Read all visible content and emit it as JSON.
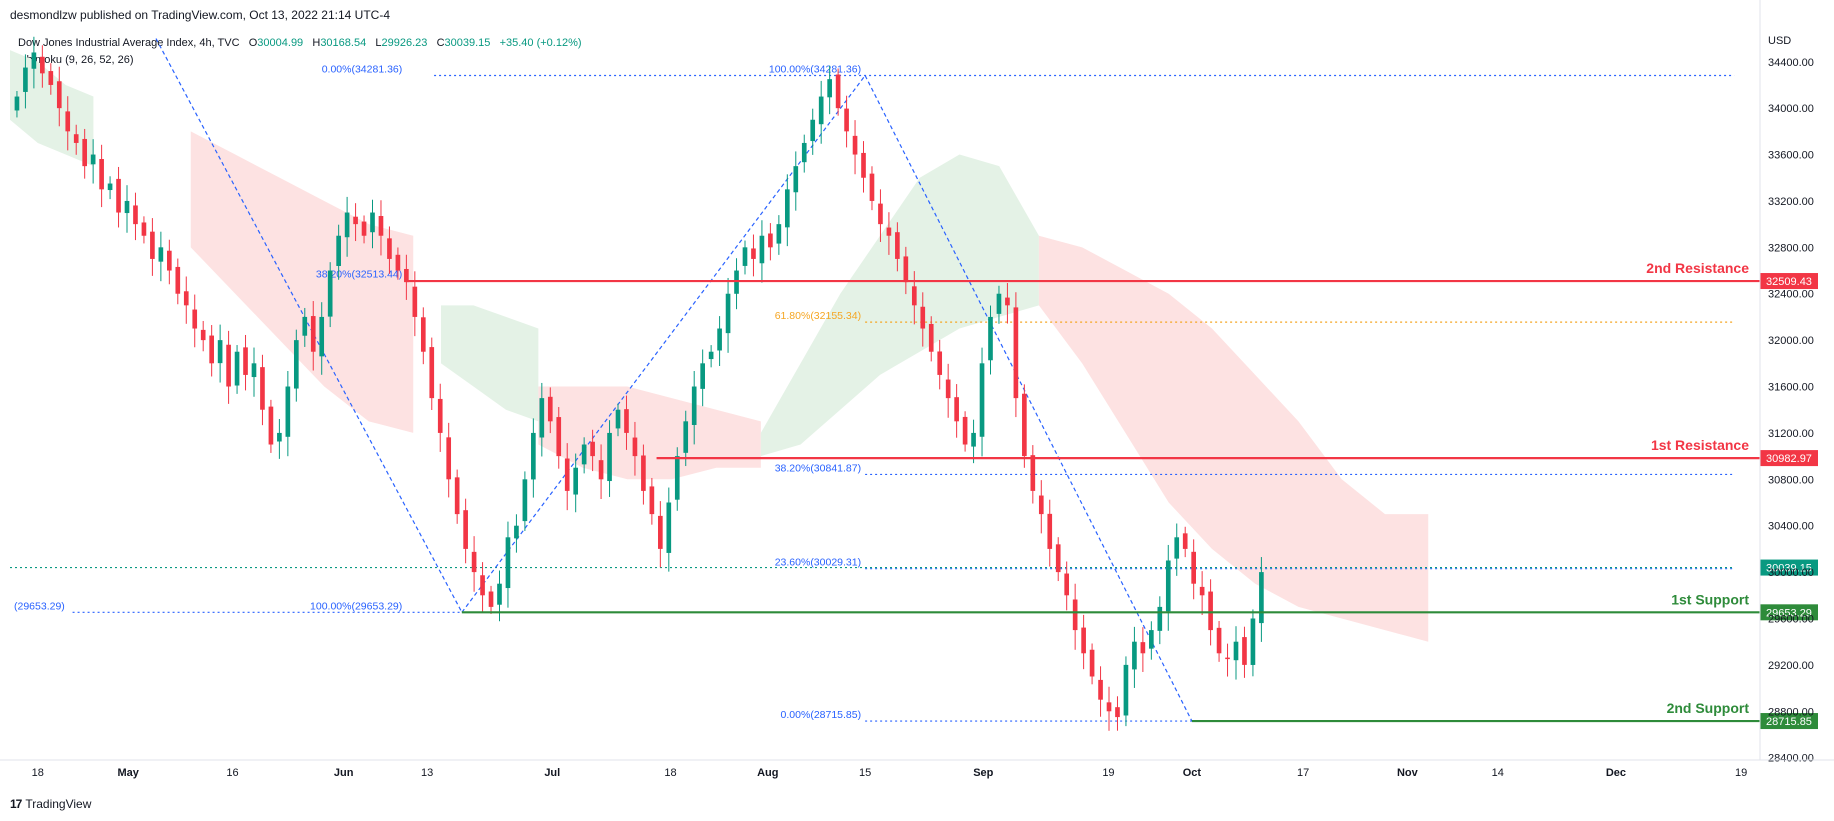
{
  "header": {
    "publisher": "desmondlzw published on TradingView.com, Oct 13, 2022 21:14 UTC-4"
  },
  "legend": {
    "symbol": "Dow Jones Industrial Average Index, 4h, TVC",
    "open_label": "O",
    "open": "30004.99",
    "high_label": "H",
    "high": "30168.54",
    "low_label": "L",
    "low": "29926.23",
    "close_label": "C",
    "close": "30039.15",
    "change": "+35.40 (+0.12%)",
    "indicator": "Ichimoku (9, 26, 52, 26)"
  },
  "footer": {
    "logo_text": "TradingView",
    "logo_mark": "17"
  },
  "colors": {
    "up": "#089981",
    "down": "#f23645",
    "resistance": "#f23645",
    "support": "#2e8b3a",
    "fib_blue": "#2962ff",
    "fib_orange": "#f5a623",
    "cloud_bull": "#e4f2e6",
    "cloud_bear": "#fde2e2"
  },
  "chart_data": {
    "type": "candlestick",
    "title": "Dow Jones Industrial Average Index, 4h, TVC",
    "currency": "USD",
    "y_ticks": [
      "34400.00",
      "34000.00",
      "33600.00",
      "33200.00",
      "32800.00",
      "32400.00",
      "32000.00",
      "31600.00",
      "31200.00",
      "30800.00",
      "30400.00",
      "30000.00",
      "29600.00",
      "29200.00",
      "28800.00",
      "28400.00"
    ],
    "y_tick_values": [
      34400,
      34000,
      33600,
      33200,
      32800,
      32400,
      32000,
      31600,
      31200,
      30800,
      30400,
      30000,
      29600,
      29200,
      28800,
      28400
    ],
    "ylim": [
      28380,
      34760
    ],
    "x_ticks": [
      {
        "label": "18",
        "day": 0
      },
      {
        "label": "May",
        "day": 13
      },
      {
        "label": "16",
        "day": 28
      },
      {
        "label": "Jun",
        "day": 44
      },
      {
        "label": "13",
        "day": 56
      },
      {
        "label": "Jul",
        "day": 74
      },
      {
        "label": "18",
        "day": 91
      },
      {
        "label": "Aug",
        "day": 105
      },
      {
        "label": "15",
        "day": 119
      },
      {
        "label": "Sep",
        "day": 136
      },
      {
        "label": "19",
        "day": 154
      },
      {
        "label": "Oct",
        "day": 166
      },
      {
        "label": "17",
        "day": 182
      },
      {
        "label": "Nov",
        "day": 197
      },
      {
        "label": "14",
        "day": 210
      },
      {
        "label": "Dec",
        "day": 227
      },
      {
        "label": "19",
        "day": 245
      }
    ],
    "xlim_days": [
      -4,
      247
    ],
    "grid": false,
    "horizontal_levels": [
      {
        "name": "2nd Resistance",
        "value": 32509.43,
        "label": "32509.43",
        "color": "#f23645",
        "start_day": 53
      },
      {
        "name": "1st Resistance",
        "value": 30982.97,
        "label": "30982.97",
        "color": "#f23645",
        "start_day": 89
      },
      {
        "name": "1st Support",
        "value": 29653.29,
        "label": "29653.29",
        "color": "#2e8b3a",
        "start_day": 61
      },
      {
        "name": "2nd Support",
        "value": 28715.85,
        "label": "28715.85",
        "color": "#2e8b3a",
        "start_day": 166
      }
    ],
    "last_price": {
      "value": 30039.15,
      "label": "30039.15"
    },
    "fib_labels": [
      {
        "text": "0.00%(34281.36)",
        "value": 34281.36,
        "day": 53,
        "color": "#2962ff"
      },
      {
        "text": "100.00%(34281.36)",
        "value": 34281.36,
        "day": 119,
        "color": "#2962ff"
      },
      {
        "text": "38.20%(32513.44)",
        "value": 32513.44,
        "day": 53,
        "color": "#2962ff"
      },
      {
        "text": "61.80%(32155.34)",
        "value": 32155.34,
        "day": 119,
        "color": "#f5a623"
      },
      {
        "text": "38.20%(30841.87)",
        "value": 30841.87,
        "day": 119,
        "color": "#2962ff"
      },
      {
        "text": "23.60%(30029.31)",
        "value": 30029.31,
        "day": 119,
        "color": "#2962ff"
      },
      {
        "text": "100.00%(29653.29)",
        "value": 29653.29,
        "day": 53,
        "color": "#2962ff"
      },
      {
        "text": "(29653.29)",
        "value": 29653.29,
        "day": -4,
        "color": "#2962ff"
      },
      {
        "text": "0.00%(28715.85)",
        "value": 28715.85,
        "day": 119,
        "color": "#2962ff"
      }
    ],
    "fib_lines": [
      {
        "value": 34281.36,
        "from_day": 57,
        "to_day": 244,
        "color": "#2962ff"
      },
      {
        "value": 32155.34,
        "from_day": 119,
        "to_day": 244,
        "color": "#f5a623"
      },
      {
        "value": 30841.87,
        "from_day": 119,
        "to_day": 244,
        "color": "#2962ff"
      },
      {
        "value": 30029.31,
        "from_day": 119,
        "to_day": 244,
        "color": "#2962ff"
      },
      {
        "value": 29653.29,
        "from_day": 5,
        "to_day": 61,
        "color": "#2962ff"
      },
      {
        "value": 28715.85,
        "from_day": 119,
        "to_day": 244,
        "color": "#2962ff"
      },
      {
        "value": 30039.15,
        "from_day": -4,
        "to_day": 244,
        "color": "#089981"
      }
    ],
    "trend_lines": [
      {
        "from": [
          17,
          34600
        ],
        "to": [
          61,
          29653.29
        ]
      },
      {
        "from": [
          61,
          29653.29
        ],
        "to": [
          119,
          34281.36
        ]
      },
      {
        "from": [
          119,
          34281.36
        ],
        "to": [
          166,
          28715.85
        ]
      }
    ],
    "closes": [
      34100,
      34350,
      34480,
      34300,
      34200,
      34000,
      33800,
      33700,
      33500,
      33600,
      33300,
      33350,
      33100,
      33200,
      33000,
      32900,
      32700,
      32800,
      32600,
      32400,
      32300,
      32100,
      32000,
      31800,
      32000,
      31600,
      31900,
      31700,
      31800,
      31400,
      31100,
      31200,
      31600,
      32000,
      32200,
      31900,
      32200,
      32600,
      32900,
      33100,
      33000,
      32900,
      33100,
      32900,
      32700,
      32600,
      32500,
      32200,
      31900,
      31500,
      31200,
      30800,
      30500,
      30200,
      30000,
      29800,
      29700,
      29900,
      30300,
      30400,
      30800,
      31200,
      31500,
      31300,
      31000,
      30700,
      30900,
      31100,
      31000,
      30800,
      31200,
      31400,
      31200,
      31000,
      30700,
      30500,
      30200,
      30600,
      31000,
      31300,
      31600,
      31800,
      31900,
      32100,
      32400,
      32600,
      32800,
      32700,
      32900,
      32800,
      33000,
      33300,
      33500,
      33700,
      33900,
      34100,
      34250,
      34000,
      33800,
      33600,
      33400,
      33200,
      33000,
      32900,
      32700,
      32500,
      32300,
      32100,
      31900,
      31700,
      31500,
      31300,
      31100,
      31200,
      31800,
      32200,
      32400,
      32300,
      31500,
      31000,
      30700,
      30500,
      30200,
      30000,
      29800,
      29500,
      29300,
      29100,
      28900,
      28800,
      28750,
      29200,
      29400,
      29300,
      29500,
      29700,
      30100,
      30300,
      30200,
      29900,
      29800,
      29500,
      29300,
      29250,
      29400,
      29200,
      29600,
      30000
    ],
    "cloud": [
      {
        "from_day": -4,
        "to_day": 8,
        "type": "bull",
        "top": [
          34500,
          34400,
          34200,
          34100
        ],
        "bottom": [
          33900,
          33700,
          33600,
          33500
        ]
      },
      {
        "from_day": 22,
        "to_day": 54,
        "type": "bear",
        "top": [
          33800,
          33600,
          33400,
          33200,
          33000,
          32900
        ],
        "bottom": [
          32800,
          32400,
          32000,
          31600,
          31300,
          31200
        ]
      },
      {
        "from_day": 58,
        "to_day": 72,
        "type": "bull",
        "top": [
          32300,
          32300,
          32200,
          32100
        ],
        "bottom": [
          31800,
          31600,
          31400,
          31300
        ]
      },
      {
        "from_day": 72,
        "to_day": 104,
        "type": "bear",
        "top": [
          31600,
          31600,
          31600,
          31500,
          31400,
          31300
        ],
        "bottom": [
          31100,
          30900,
          30800,
          30800,
          30900,
          30900
        ]
      },
      {
        "from_day": 104,
        "to_day": 144,
        "type": "bull",
        "top": [
          31200,
          31800,
          32400,
          32900,
          33400,
          33600,
          33500,
          32900
        ],
        "bottom": [
          31000,
          31100,
          31400,
          31700,
          31900,
          32100,
          32200,
          32300
        ]
      },
      {
        "from_day": 144,
        "to_day": 200,
        "type": "bear",
        "top": [
          32900,
          32800,
          32600,
          32400,
          32100,
          31700,
          31300,
          30800,
          30500,
          30500
        ],
        "bottom": [
          32300,
          31800,
          31200,
          30600,
          30200,
          29900,
          29700,
          29600,
          29500,
          29400
        ]
      }
    ]
  }
}
